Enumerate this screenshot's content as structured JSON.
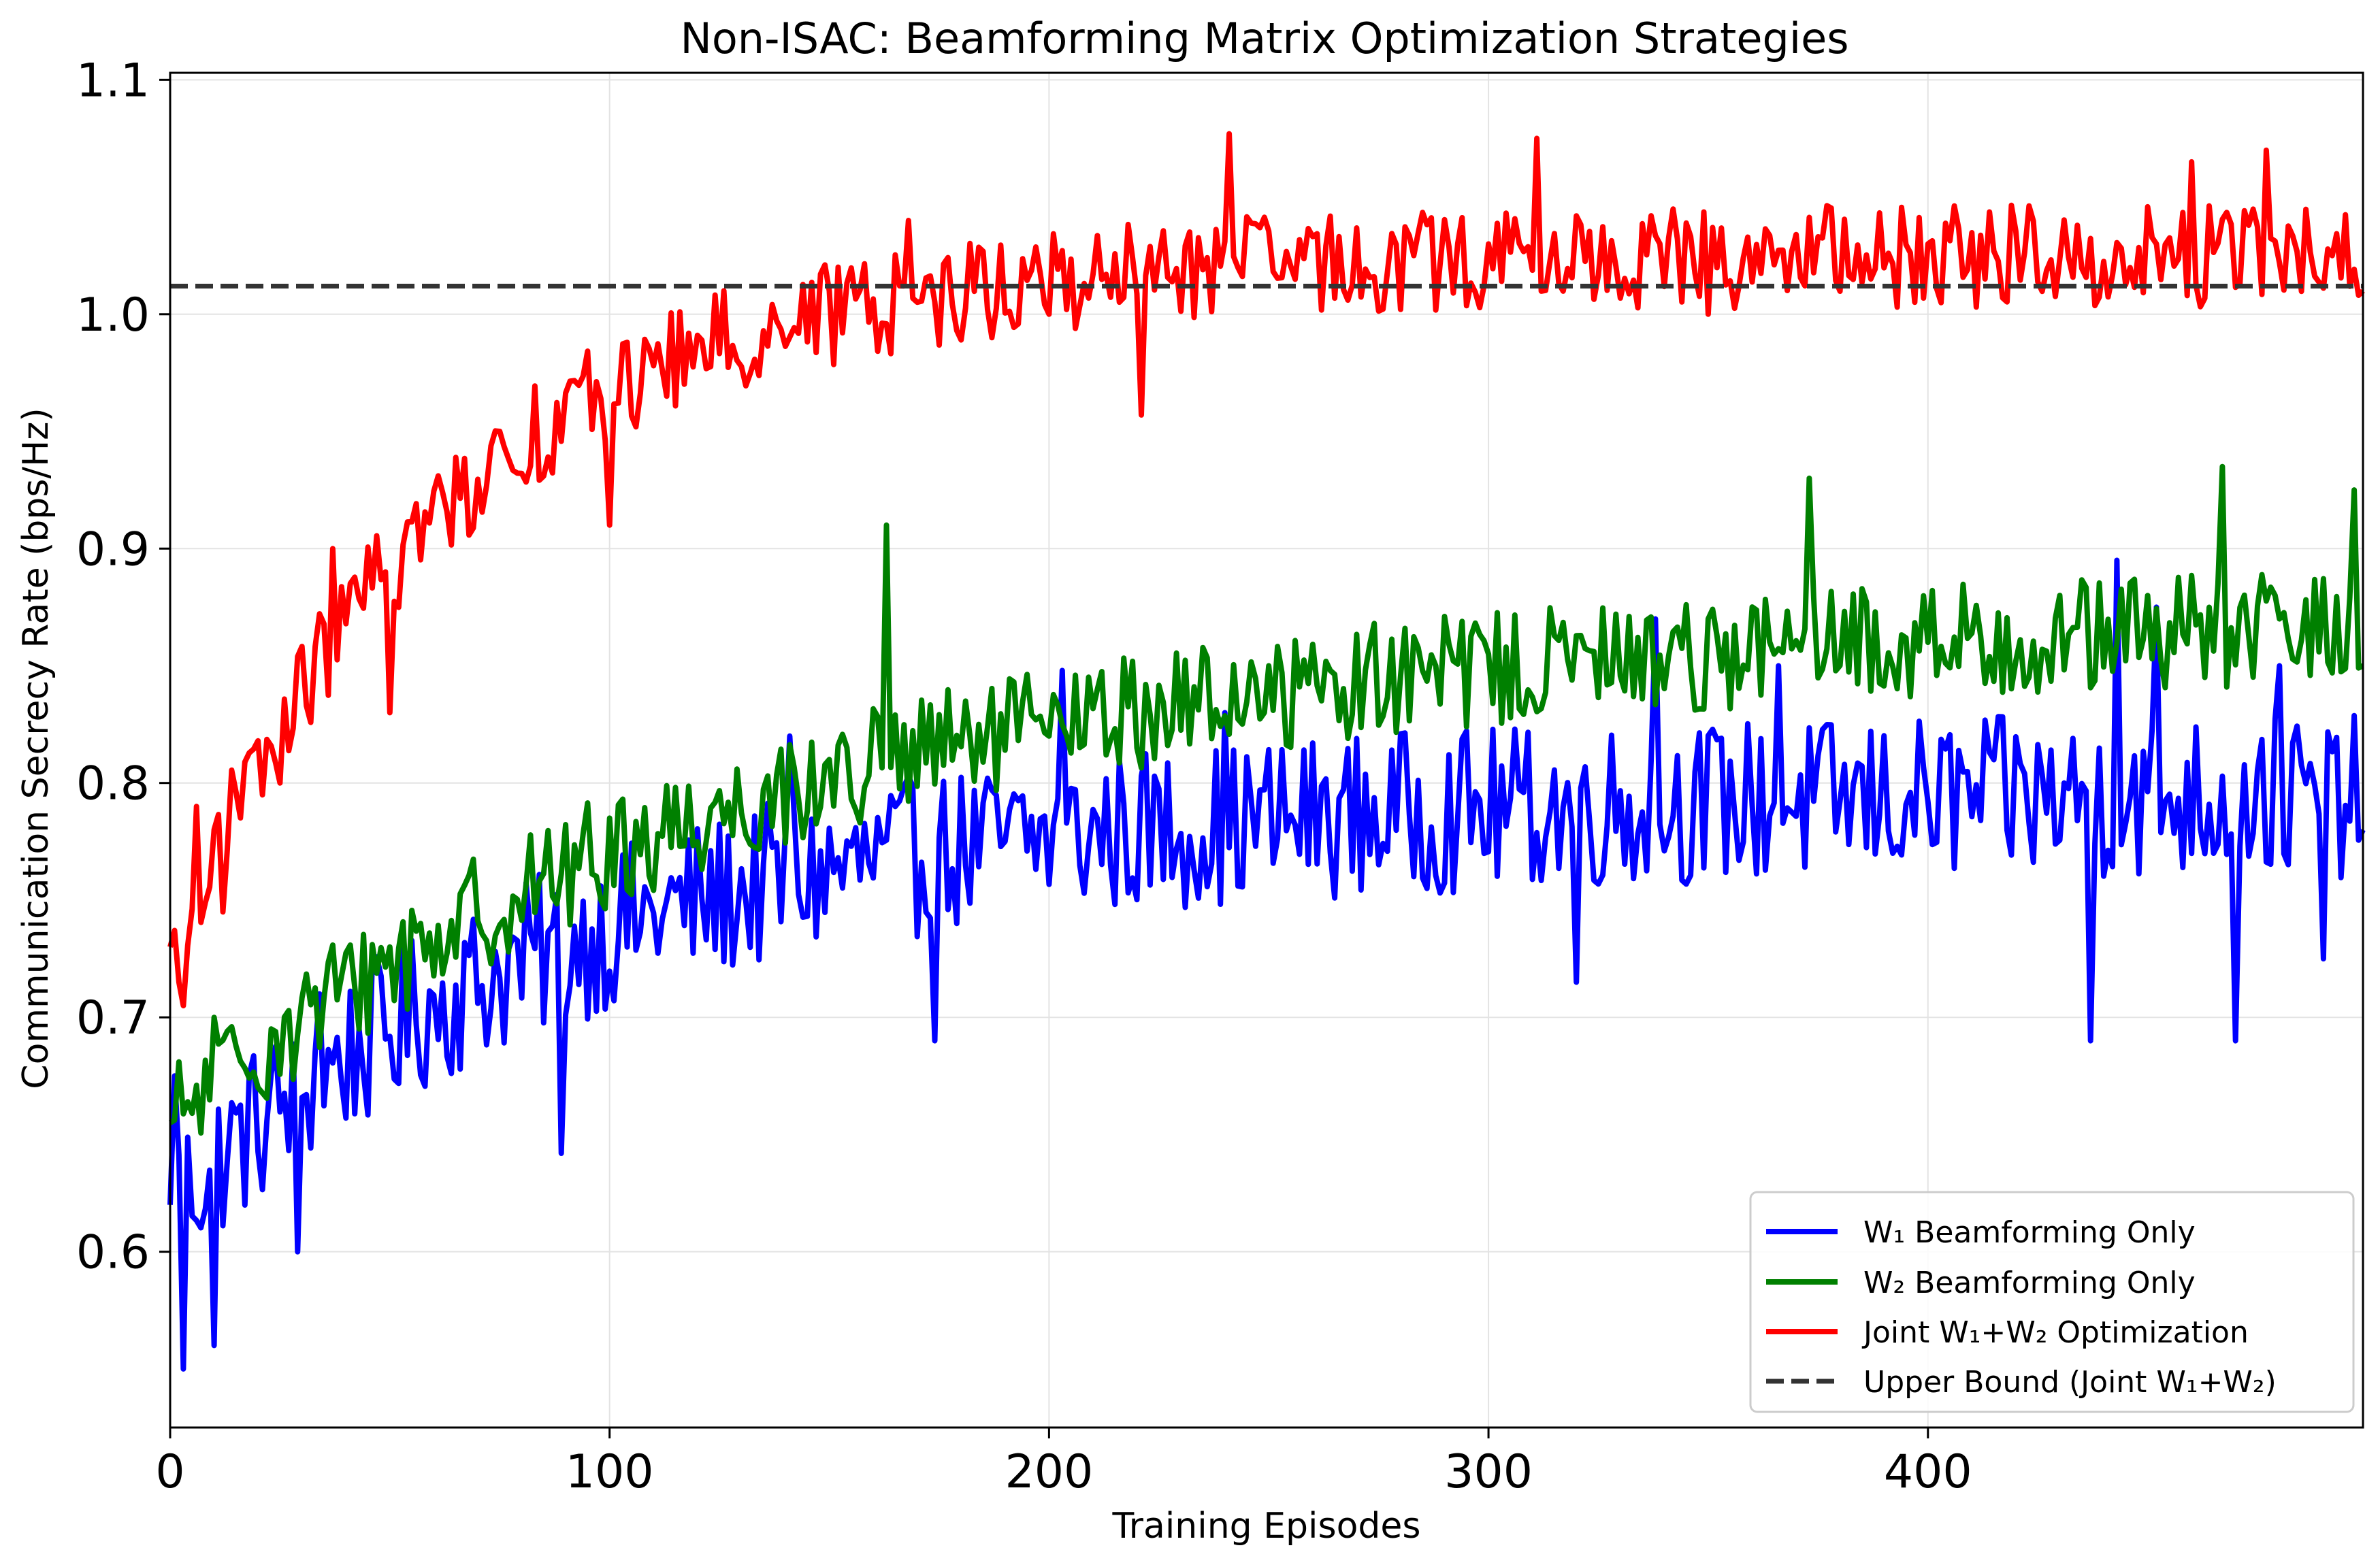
{
  "chart_data": {
    "type": "line",
    "title": "Non-ISAC: Beamforming Matrix Optimization Strategies",
    "xlabel": "Training Episodes",
    "ylabel": "Communication Secrecy Rate (bps/Hz)",
    "xlim": [
      0,
      499
    ],
    "ylim": [
      0.525,
      1.103
    ],
    "xticks": [
      0,
      100,
      200,
      300,
      400
    ],
    "yticks": [
      0.6,
      0.7,
      0.8,
      0.9,
      1.0,
      1.1
    ],
    "xtick_labels": [
      "0",
      "100",
      "200",
      "300",
      "400"
    ],
    "ytick_labels": [
      "0.6",
      "0.7",
      "0.8",
      "0.9",
      "1.0",
      "1.1"
    ],
    "grid": true,
    "legend_position": "lower-right",
    "x": {
      "start": 0,
      "end": 499,
      "step": 1
    },
    "series": [
      {
        "name": "W₁ Beamforming Only",
        "color": "#0000ff",
        "style": "solid",
        "trend": {
          "start": 0.62,
          "plateau": 0.795,
          "tau": 90
        },
        "noise_amplitude": 0.035,
        "anchor_points": [
          [
            0,
            0.62
          ],
          [
            1,
            0.675
          ],
          [
            3,
            0.55
          ],
          [
            10,
            0.56
          ],
          [
            29,
            0.6
          ],
          [
            34,
            0.71
          ],
          [
            89,
            0.642
          ],
          [
            141,
            0.82
          ],
          [
            174,
            0.69
          ],
          [
            203,
            0.848
          ],
          [
            240,
            0.83
          ],
          [
            320,
            0.715
          ],
          [
            338,
            0.87
          ],
          [
            366,
            0.85
          ],
          [
            437,
            0.69
          ],
          [
            443,
            0.895
          ],
          [
            452,
            0.875
          ],
          [
            470,
            0.69
          ],
          [
            480,
            0.85
          ],
          [
            490,
            0.725
          ],
          [
            499,
            0.78
          ]
        ]
      },
      {
        "name": "W₂ Beamforming Only",
        "color": "#008000",
        "style": "solid",
        "trend": {
          "start": 0.655,
          "plateau": 0.87,
          "tau": 130
        },
        "noise_amplitude": 0.025,
        "anchor_points": [
          [
            0,
            0.655
          ],
          [
            10,
            0.7
          ],
          [
            20,
            0.67
          ],
          [
            50,
            0.73
          ],
          [
            100,
            0.785
          ],
          [
            150,
            0.81
          ],
          [
            163,
            0.91
          ],
          [
            200,
            0.82
          ],
          [
            250,
            0.85
          ],
          [
            300,
            0.855
          ],
          [
            350,
            0.87
          ],
          [
            373,
            0.93
          ],
          [
            400,
            0.86
          ],
          [
            450,
            0.88
          ],
          [
            467,
            0.935
          ],
          [
            480,
            0.87
          ],
          [
            497,
            0.925
          ],
          [
            499,
            0.85
          ]
        ]
      },
      {
        "name": "Joint W₁+W₂ Optimization",
        "color": "#ff0000",
        "style": "solid",
        "trend": {
          "start": 0.72,
          "plateau": 1.025,
          "tau": 60
        },
        "noise_amplitude": 0.022,
        "anchor_points": [
          [
            0,
            0.73
          ],
          [
            3,
            0.705
          ],
          [
            6,
            0.79
          ],
          [
            12,
            0.745
          ],
          [
            25,
            0.8
          ],
          [
            37,
            0.9
          ],
          [
            50,
            0.83
          ],
          [
            75,
            0.95
          ],
          [
            100,
            0.91
          ],
          [
            126,
            1.01
          ],
          [
            150,
            1.01
          ],
          [
            168,
            1.04
          ],
          [
            200,
            1.0
          ],
          [
            221,
            0.957
          ],
          [
            241,
            1.077
          ],
          [
            300,
            1.03
          ],
          [
            311,
            1.075
          ],
          [
            350,
            1.0
          ],
          [
            400,
            1.03
          ],
          [
            460,
            1.065
          ],
          [
            477,
            1.07
          ],
          [
            499,
            1.01
          ]
        ]
      },
      {
        "name": "Upper Bound (Joint W₁+W₂)",
        "color": "#333333",
        "style": "dashed",
        "constant": 1.012
      }
    ]
  }
}
